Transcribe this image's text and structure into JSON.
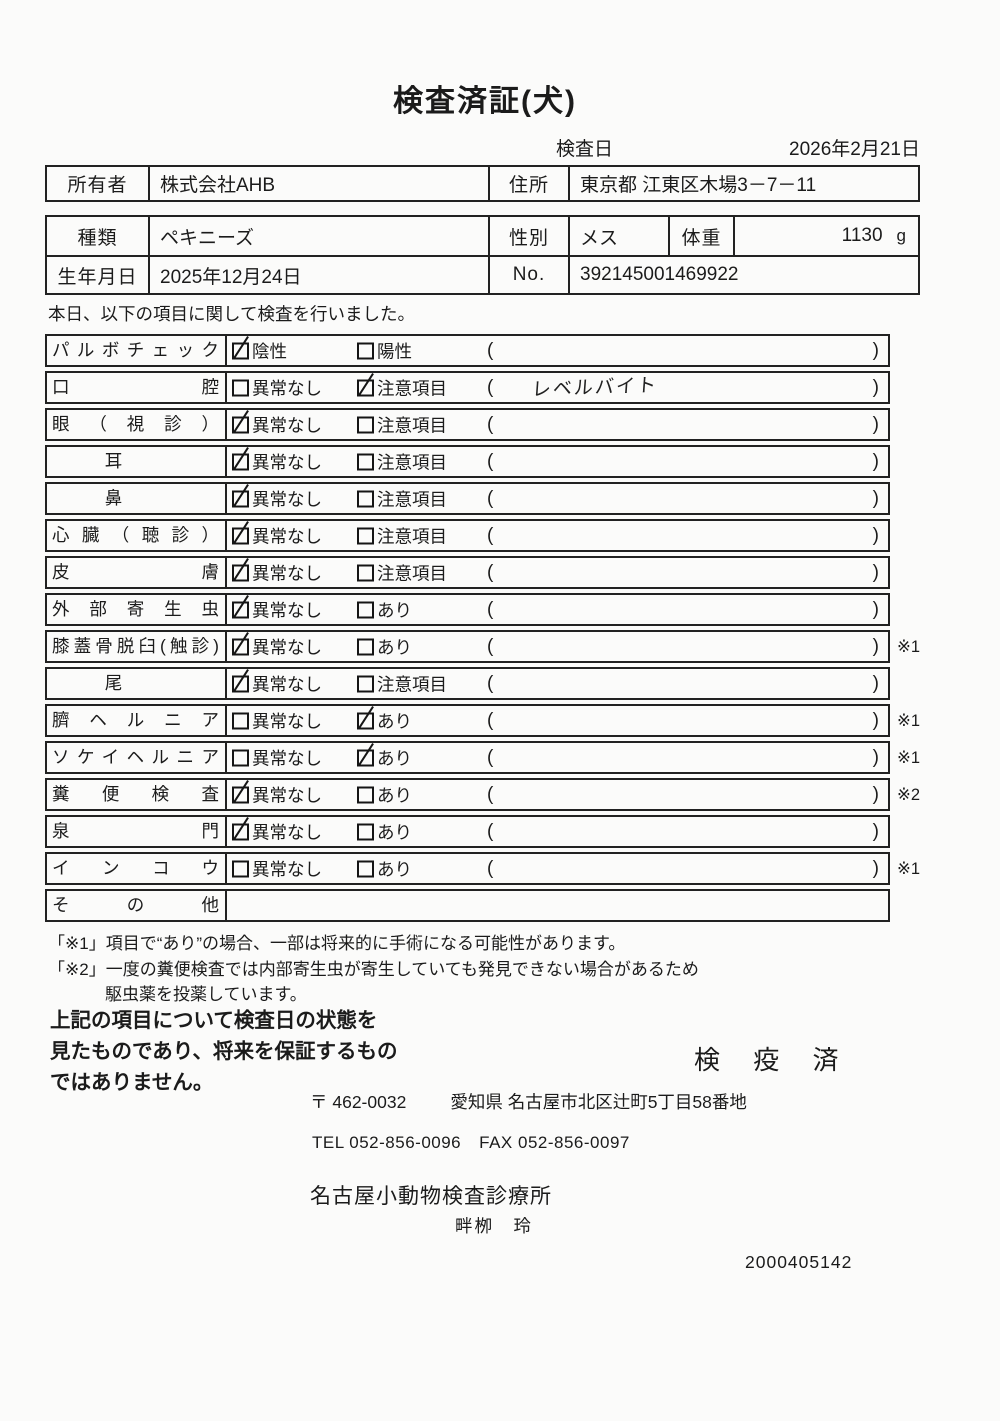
{
  "page": {
    "title": "検査済証(犬)"
  },
  "header": {
    "inspection_date_label": "検査日",
    "inspection_date": "2026年2月21日"
  },
  "owner_table": {
    "owner_label": "所有者",
    "owner": "株式会社AHB",
    "address_label": "住所",
    "address": "東京都 江東区木場3－7－11"
  },
  "animal_table": {
    "breed_label": "種類",
    "breed": "ペキニーズ",
    "sex_label": "性別",
    "sex": "メス",
    "weight_label": "体重",
    "weight": "1130",
    "weight_unit": "g",
    "birthdate_label": "生年月日",
    "birthdate": "2025年12月24日",
    "no_label": "No.",
    "no_value": "392145001469922"
  },
  "intro": "本日、以下の項目に関して検査を行いました。",
  "checklist": {
    "paren_open": "(",
    "paren_close": ")",
    "rows": [
      {
        "label": "パルボチェック",
        "opt1": {
          "text": "陰性",
          "checked": true
        },
        "opt2": {
          "text": "陽性",
          "checked": false
        },
        "note": "",
        "remark": ""
      },
      {
        "label": "口腔",
        "opt1": {
          "text": "異常なし",
          "checked": false
        },
        "opt2": {
          "text": "注意項目",
          "checked": true
        },
        "note": "レベルバイト",
        "remark": ""
      },
      {
        "label": "眼（視診）",
        "opt1": {
          "text": "異常なし",
          "checked": true
        },
        "opt2": {
          "text": "注意項目",
          "checked": false
        },
        "note": "",
        "remark": ""
      },
      {
        "label": "耳",
        "opt1": {
          "text": "異常なし",
          "checked": true
        },
        "opt2": {
          "text": "注意項目",
          "checked": false
        },
        "note": "",
        "remark": ""
      },
      {
        "label": "鼻",
        "opt1": {
          "text": "異常なし",
          "checked": true
        },
        "opt2": {
          "text": "注意項目",
          "checked": false
        },
        "note": "",
        "remark": ""
      },
      {
        "label": "心臓（聴診）",
        "opt1": {
          "text": "異常なし",
          "checked": true
        },
        "opt2": {
          "text": "注意項目",
          "checked": false
        },
        "note": "",
        "remark": ""
      },
      {
        "label": "皮膚",
        "opt1": {
          "text": "異常なし",
          "checked": true
        },
        "opt2": {
          "text": "注意項目",
          "checked": false
        },
        "note": "",
        "remark": ""
      },
      {
        "label": "外部寄生虫",
        "opt1": {
          "text": "異常なし",
          "checked": true
        },
        "opt2": {
          "text": "あり",
          "checked": false
        },
        "note": "",
        "remark": ""
      },
      {
        "label": "膝蓋骨脱臼(触診)",
        "opt1": {
          "text": "異常なし",
          "checked": true
        },
        "opt2": {
          "text": "あり",
          "checked": false
        },
        "note": "",
        "remark": "※1"
      },
      {
        "label": "尾",
        "opt1": {
          "text": "異常なし",
          "checked": true
        },
        "opt2": {
          "text": "注意項目",
          "checked": false
        },
        "note": "",
        "remark": ""
      },
      {
        "label": "臍ヘルニア",
        "opt1": {
          "text": "異常なし",
          "checked": false
        },
        "opt2": {
          "text": "あり",
          "checked": true
        },
        "note": "",
        "remark": "※1"
      },
      {
        "label": "ソケイヘルニア",
        "opt1": {
          "text": "異常なし",
          "checked": false
        },
        "opt2": {
          "text": "あり",
          "checked": true
        },
        "note": "",
        "remark": "※1"
      },
      {
        "label": "糞便検査",
        "opt1": {
          "text": "異常なし",
          "checked": true
        },
        "opt2": {
          "text": "あり",
          "checked": false
        },
        "note": "",
        "remark": "※2"
      },
      {
        "label": "泉門",
        "opt1": {
          "text": "異常なし",
          "checked": true
        },
        "opt2": {
          "text": "あり",
          "checked": false
        },
        "note": "",
        "remark": ""
      },
      {
        "label": "インコウ",
        "opt1": {
          "text": "異常なし",
          "checked": false
        },
        "opt2": {
          "text": "あり",
          "checked": false
        },
        "note": "",
        "remark": "※1"
      },
      {
        "label": "その他",
        "opt1": null,
        "opt2": null,
        "note": "",
        "remark": ""
      }
    ],
    "note1": "「※1」項目で“あり”の場合、一部は将来的に手術になる可能性があります。",
    "note2a": "「※2」一度の糞便検査では内部寄生虫が寄生していても発見できない場合があるため",
    "note2b": "駆虫薬を投薬しています。"
  },
  "footer": {
    "disclaimer_line1": "上記の項目について検査日の状態を",
    "disclaimer_line2": "見たものであり、将来を保証するもの",
    "disclaimer_line3": "ではありません。",
    "quarantine_stamp": "検 疫 済",
    "postal_mark": "〒 462-0032",
    "address": "愛知県 名古屋市北区辻町5丁目58番地",
    "tel": "TEL 052-856-0096",
    "fax": "FAX 052-856-0097",
    "clinic": "名古屋小動物検査診療所",
    "vet_name": "畔栁　玲",
    "serial": "2000405142"
  }
}
